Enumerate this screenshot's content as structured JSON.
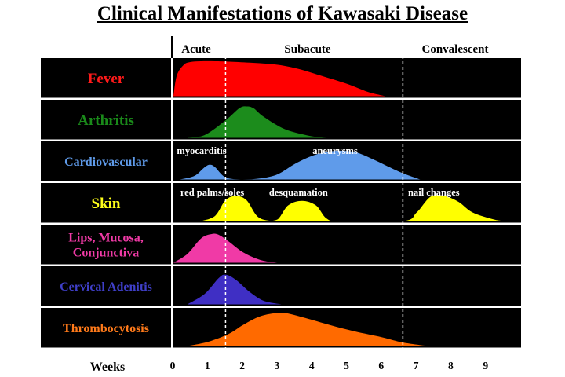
{
  "page_title": "Clinical Manifestations of Kawasaki Disease",
  "chart_data": {
    "type": "area",
    "title": "Clinical Manifestations of Kawasaki Disease",
    "xlabel": "Weeks",
    "xlim": [
      0,
      9.5
    ],
    "x_ticks": [
      "0",
      "1",
      "2",
      "3",
      "4",
      "5",
      "6",
      "7",
      "8",
      "9"
    ],
    "ylim": [
      0,
      1
    ],
    "grid": false,
    "legend": "none",
    "phases": [
      {
        "label": "Acute",
        "start": 0,
        "end": 1.5
      },
      {
        "label": "Subacute",
        "start": 1.5,
        "end": 6.6
      },
      {
        "label": "Convalescent",
        "start": 6.6,
        "end": 9.5
      }
    ],
    "phase_boundaries": [
      1.5,
      6.6
    ],
    "rows": [
      {
        "label": "Fever",
        "color": "#ff0000",
        "label_color": "#ff1a1a",
        "x": [
          0,
          0.1,
          0.3,
          0.5,
          0.8,
          1.2,
          1.6,
          2.2,
          3,
          3.6,
          4.2,
          5,
          5.6,
          6.1
        ],
        "y": [
          0,
          0.6,
          0.9,
          0.98,
          1,
          1,
          0.99,
          0.96,
          0.9,
          0.78,
          0.6,
          0.35,
          0.12,
          0
        ]
      },
      {
        "label": "Arthritis",
        "color": "#1c8c1c",
        "label_color": "#1a8a1a",
        "x": [
          0.4,
          0.9,
          1.5,
          1.9,
          2.1,
          2.3,
          2.6,
          3.2,
          3.9,
          4.4
        ],
        "y": [
          0,
          0.08,
          0.5,
          0.85,
          0.9,
          0.85,
          0.6,
          0.25,
          0.06,
          0
        ]
      },
      {
        "label": "Cardiovascular",
        "color": "#5f9bea",
        "label_color": "#5f9bea",
        "x": [
          0.2,
          0.6,
          0.9,
          1.05,
          1.2,
          1.5,
          2,
          2.5,
          3,
          3.5,
          4,
          4.5,
          4.9,
          5.3,
          5.8,
          6.5,
          7.1
        ],
        "y": [
          0,
          0.1,
          0.35,
          0.42,
          0.35,
          0.06,
          0,
          0.03,
          0.15,
          0.45,
          0.68,
          0.8,
          0.82,
          0.76,
          0.55,
          0.22,
          0
        ]
      },
      {
        "label": "Skin",
        "color": "#ffff00",
        "label_color": "#ffff1a",
        "x": [
          0.8,
          1.2,
          1.5,
          1.8,
          2.1,
          2.4,
          2.7,
          3,
          3.3,
          3.7,
          4.1,
          4.4,
          4.8,
          6.6,
          7,
          7.4,
          7.8,
          8.2,
          8.6,
          9.2,
          9.5
        ],
        "y": [
          0,
          0.15,
          0.6,
          0.72,
          0.6,
          0.15,
          0.02,
          0.05,
          0.45,
          0.58,
          0.45,
          0.08,
          0,
          0,
          0.25,
          0.7,
          0.72,
          0.55,
          0.25,
          0.05,
          0
        ]
      },
      {
        "label": "Lips, Mucosa, Conjunctiva",
        "label_lines": [
          "Lips, Mucosa,",
          "Conjunctiva"
        ],
        "color": "#f03aa6",
        "label_color": "#f03aa6",
        "x": [
          0,
          0.4,
          0.8,
          1.1,
          1.3,
          1.6,
          2,
          2.5,
          3
        ],
        "y": [
          0,
          0.25,
          0.7,
          0.82,
          0.8,
          0.6,
          0.3,
          0.08,
          0
        ]
      },
      {
        "label": "Cervical Adenitis",
        "color": "#3f2fc4",
        "label_color": "#3f3fc8",
        "x": [
          0.4,
          0.9,
          1.3,
          1.5,
          1.8,
          2.2,
          2.6,
          3.1
        ],
        "y": [
          0,
          0.3,
          0.75,
          0.85,
          0.7,
          0.35,
          0.1,
          0
        ]
      },
      {
        "label": "Thrombocytosis",
        "color": "#ff6a00",
        "label_color": "#ff7a1a",
        "x": [
          0.4,
          1,
          1.6,
          2,
          2.5,
          3,
          3.3,
          3.8,
          4.5,
          5.2,
          6,
          6.6,
          7.3
        ],
        "y": [
          0,
          0.12,
          0.35,
          0.6,
          0.85,
          0.95,
          0.93,
          0.8,
          0.6,
          0.42,
          0.25,
          0.1,
          0
        ]
      }
    ],
    "annotations": [
      {
        "row": 2,
        "x": 0.1,
        "text": "myocarditis"
      },
      {
        "row": 2,
        "x": 4.0,
        "text": "aneurysms"
      },
      {
        "row": 3,
        "x": 0.2,
        "text": "red palms/soles"
      },
      {
        "row": 3,
        "x": 2.75,
        "text": "desquamation"
      },
      {
        "row": 3,
        "x": 6.75,
        "text": "nail changes"
      }
    ]
  }
}
